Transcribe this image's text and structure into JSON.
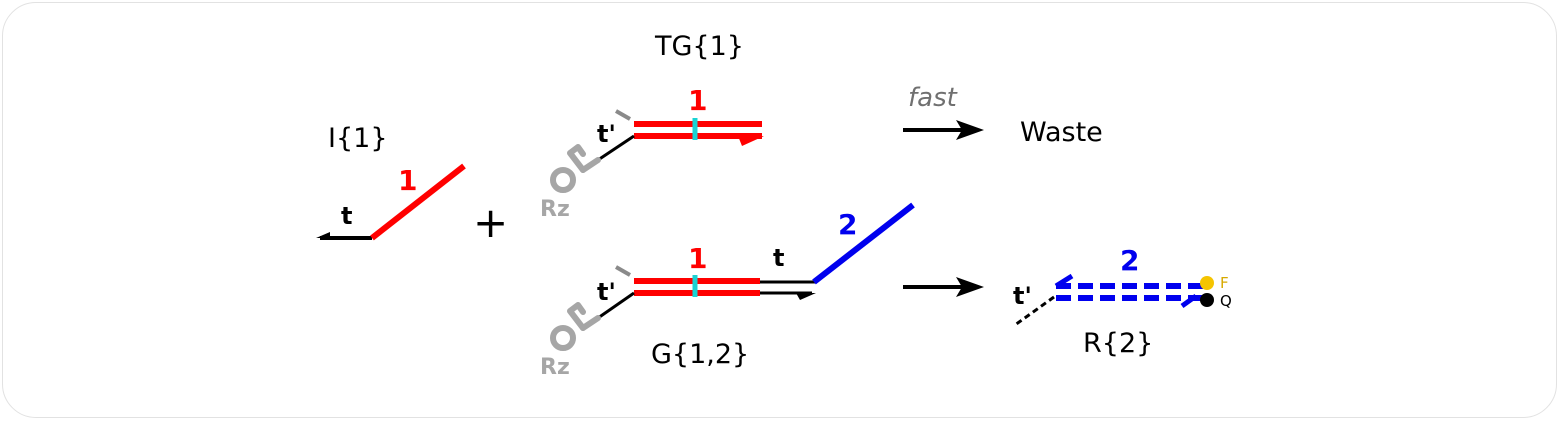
{
  "species": {
    "invader": {
      "name": "I{1}",
      "toehold": "t",
      "domain": "1"
    },
    "threshold_gate": {
      "name": "TG{1}",
      "toehold": "t'",
      "domain": "1",
      "ribozyme": "Rz"
    },
    "gate": {
      "name": "G{1,2}",
      "toehold_left": "t'",
      "domain": "1",
      "toehold_right": "t",
      "output": "2",
      "ribozyme": "Rz"
    },
    "reporter": {
      "name": "R{2}",
      "toehold": "t'",
      "domain": "2",
      "fluorophore": "F",
      "quencher": "Q"
    }
  },
  "operators": {
    "plus": "+"
  },
  "reactions": {
    "fast": {
      "rate_label": "fast",
      "product": "Waste"
    }
  },
  "colors": {
    "domain1": "#ff0000",
    "domain2": "#0000ee",
    "toehold": "#000000",
    "ribozyme": "#a6a6a6",
    "mismatch": "#19d3d3",
    "fluorophore": "#f5c400",
    "quencher": "#000000",
    "rate_label": "#707070"
  }
}
